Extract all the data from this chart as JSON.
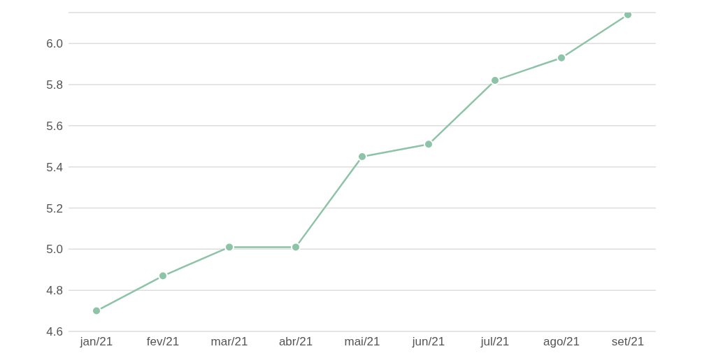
{
  "chart_data": {
    "type": "line",
    "categories": [
      "jan/21",
      "fev/21",
      "mar/21",
      "abr/21",
      "mai/21",
      "jun/21",
      "jul/21",
      "ago/21",
      "set/21"
    ],
    "series": [
      {
        "color": "#8dc3a7",
        "values": [
          4.7,
          4.87,
          5.01,
          5.01,
          5.45,
          5.51,
          5.82,
          5.93,
          6.14
        ]
      }
    ],
    "ylim": [
      4.6,
      6.15
    ],
    "yticks": [
      4.6,
      4.8,
      {
        "value": 5,
        "label": "5.0"
      },
      5.2,
      5.4,
      5.6,
      5.8,
      {
        "value": 6,
        "label": "6.0"
      }
    ],
    "grid": "y",
    "marker": "circle",
    "line_style": "solid",
    "legend": false
  }
}
